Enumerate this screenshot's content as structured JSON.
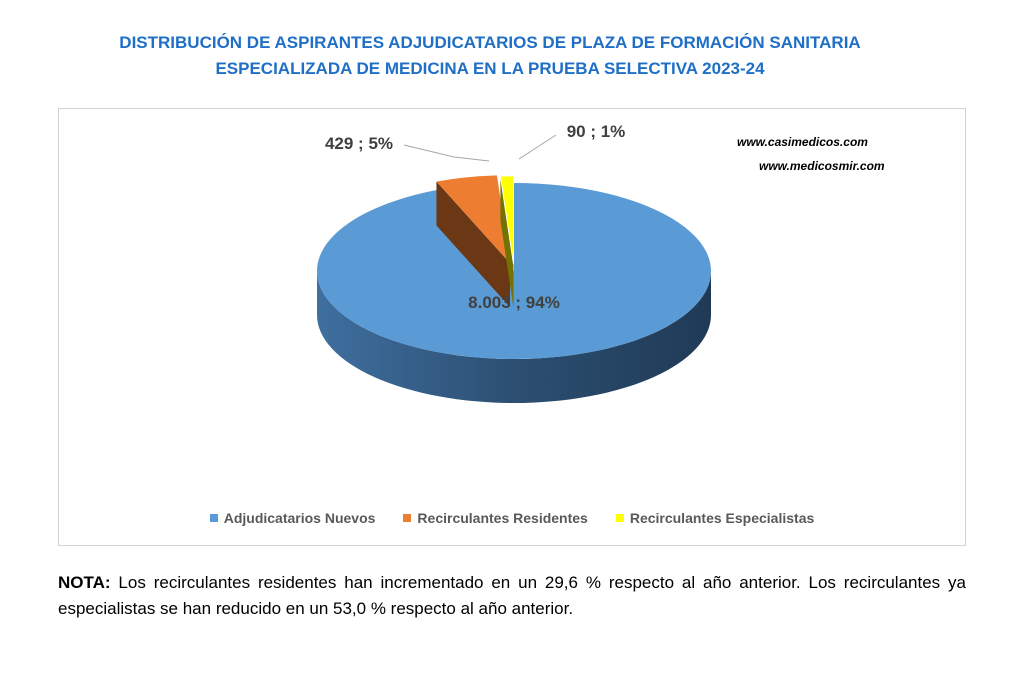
{
  "title": {
    "line1": "DISTRIBUCIÓN DE ASPIRANTES ADJUDICATARIOS DE PLAZA DE FORMACIÓN SANITARIA",
    "line2": "ESPECIALIZADA DE MEDICINA EN LA PRUEBA SELECTIVA 2023-24"
  },
  "watermarks": [
    "www.casimedicos.com",
    "www.medicosmir.com"
  ],
  "chart_data": {
    "type": "pie",
    "style": "3d-exploded",
    "slices": [
      {
        "name": "Adjudicatarios Nuevos",
        "value": 8003,
        "percent": 94,
        "label": "8.003 ; 94%",
        "color": "#5b9bd5"
      },
      {
        "name": "Recirculantes Residentes",
        "value": 429,
        "percent": 5,
        "label": "429 ; 5%",
        "color": "#ed7d31"
      },
      {
        "name": "Recirculantes Especialistas",
        "value": 90,
        "percent": 1,
        "label": "90 ; 1%",
        "color": "#ffff00"
      }
    ],
    "legend_position": "bottom"
  },
  "note": {
    "label": "NOTA:",
    "text": " Los recirculantes residentes han incrementado en un 29,6 % respecto al año anterior. Los recirculantes ya especialistas se han reducido en un 53,0 % respecto al año anterior."
  }
}
